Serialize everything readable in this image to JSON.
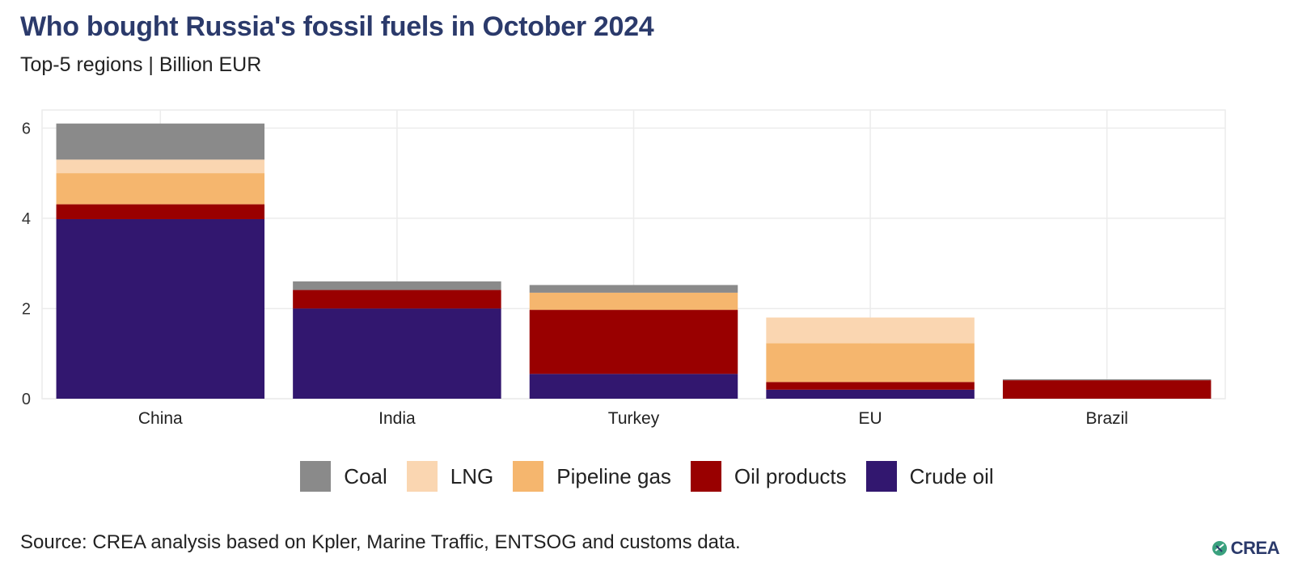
{
  "title": "Who bought Russia's fossil fuels in October 2024",
  "subtitle": "Top-5 regions | Billion EUR",
  "source": "Source: CREA analysis based on Kpler, Marine Traffic, ENTSOG and customs data.",
  "logo": "CREA",
  "chart_data": {
    "type": "bar",
    "stacked": true,
    "categories": [
      "China",
      "India",
      "Turkey",
      "EU",
      "Brazil"
    ],
    "series": [
      {
        "name": "Crude oil",
        "color": "#32176f",
        "values": [
          3.98,
          2.0,
          0.55,
          0.2,
          0.0
        ]
      },
      {
        "name": "Oil products",
        "color": "#990000",
        "values": [
          0.33,
          0.41,
          1.42,
          0.17,
          0.41
        ]
      },
      {
        "name": "Pipeline gas",
        "color": "#f5b66e",
        "values": [
          0.69,
          0.0,
          0.38,
          0.86,
          0.0
        ]
      },
      {
        "name": "LNG",
        "color": "#fad6b1",
        "values": [
          0.3,
          0.0,
          0.0,
          0.57,
          0.0
        ]
      },
      {
        "name": "Coal",
        "color": "#8a8a8a",
        "values": [
          0.8,
          0.19,
          0.17,
          0.0,
          0.02
        ]
      }
    ],
    "legend_order": [
      "Coal",
      "LNG",
      "Pipeline gas",
      "Oil products",
      "Crude oil"
    ],
    "ylim": [
      0,
      6.4
    ],
    "yticks": [
      0,
      2,
      4,
      6
    ],
    "grid": true,
    "legend_position": "bottom",
    "xlabel": "",
    "ylabel": ""
  }
}
